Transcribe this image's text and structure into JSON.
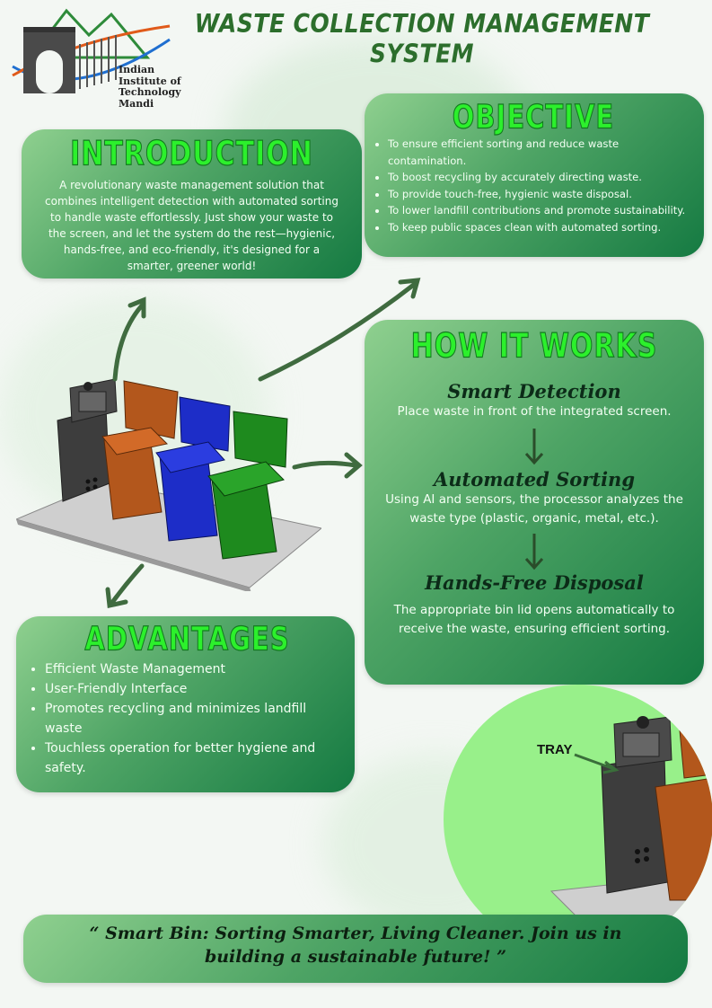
{
  "header": {
    "title": "WASTE COLLECTION MANAGEMENT SYSTEM",
    "logo_text": [
      "Indian",
      "Institute of",
      "Technology",
      "Mandi"
    ]
  },
  "introduction": {
    "title": "INTRODUCTION",
    "text": "A revolutionary waste management solution that combines intelligent detection with automated sorting to handle waste effortlessly. Just show your waste to the screen, and let the system do the rest—hygienic, hands-free, and eco-friendly, it's designed for a smarter, greener world!"
  },
  "objective": {
    "title": "OBJECTIVE",
    "items": [
      "To ensure efficient sorting and reduce waste contamination.",
      "To boost recycling by accurately directing waste.",
      "To provide touch-free, hygienic waste disposal.",
      "To lower landfill contributions and promote sustainability.",
      "To keep public spaces clean with automated sorting."
    ]
  },
  "how_it_works": {
    "title": "HOW IT WORKS",
    "steps": [
      {
        "title": "Smart Detection",
        "text": "Place waste in front of the integrated screen."
      },
      {
        "title": "Automated Sorting",
        "text": "Using AI and sensors, the processor analyzes the waste type (plastic, organic, metal, etc.)."
      },
      {
        "title": "Hands-Free Disposal",
        "text": "The appropriate bin lid opens automatically to receive the waste, ensuring efficient sorting."
      }
    ]
  },
  "advantages": {
    "title": "ADVANTAGES",
    "items": [
      "Efficient Waste Management",
      "User-Friendly Interface",
      "Promotes recycling and minimizes landfill waste",
      "Touchless operation for better hygiene and safety."
    ]
  },
  "tray_label": "TRAY",
  "footer": {
    "quote": "“ Smart Bin: Sorting Smarter, Living Cleaner. Join us in building a sustainable future! ”"
  },
  "colors": {
    "panel_dark": "#157a42",
    "panel_light": "#8fd08f",
    "title_green": "#2cf02c",
    "header_green": "#2c6e2c",
    "bin_brown": "#b3571c",
    "bin_blue": "#1d2dc8",
    "bin_green": "#1e8a1e"
  }
}
